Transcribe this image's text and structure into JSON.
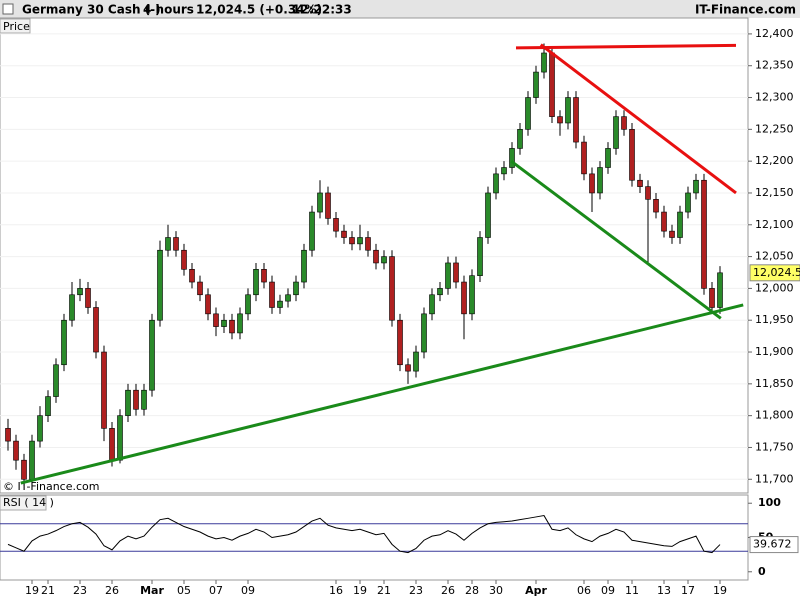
{
  "header": {
    "instrument": "Germany 30 Cash (-)",
    "period": "4 hours",
    "quote": "12,024.5 (+0.34%)",
    "time": "12:22:33",
    "brand": "IT-Finance.com"
  },
  "chart_data": [
    {
      "type": "candlestick",
      "panel_label": "Price",
      "watermark": "© IT-Finance.com",
      "up_color": "#2a8a2a",
      "down_color": "#b02020",
      "categories": [
        null,
        null,
        null,
        "19",
        null,
        "21",
        null,
        null,
        null,
        "23",
        null,
        null,
        null,
        "26",
        null,
        null,
        null,
        null,
        "Mar",
        null,
        null,
        null,
        "05",
        null,
        null,
        null,
        "07",
        null,
        null,
        null,
        "09",
        null,
        null,
        null,
        null,
        null,
        null,
        null,
        null,
        null,
        null,
        "16",
        null,
        null,
        "19",
        null,
        null,
        "21",
        null,
        null,
        null,
        "23",
        null,
        null,
        null,
        "26",
        null,
        null,
        "28",
        null,
        null,
        "30",
        null,
        null,
        null,
        null,
        "Apr",
        null,
        null,
        null,
        null,
        null,
        "06",
        null,
        null,
        "09",
        null,
        null,
        "11",
        null,
        null,
        null,
        "13",
        null,
        null,
        "17",
        null,
        null,
        null,
        "19"
      ],
      "open": [
        11780,
        11760,
        11730,
        11700,
        11760,
        11800,
        11830,
        11880,
        11950,
        11990,
        12000,
        11970,
        11900,
        11780,
        11730,
        11800,
        11840,
        11810,
        11840,
        11950,
        12060,
        12080,
        12060,
        12030,
        12010,
        11990,
        11960,
        11940,
        11950,
        11930,
        11960,
        11990,
        12030,
        12010,
        11970,
        11980,
        11990,
        12010,
        12060,
        12120,
        12150,
        12110,
        12090,
        12080,
        12070,
        12080,
        12060,
        12040,
        12050,
        11950,
        11880,
        11870,
        11900,
        11960,
        11990,
        12000,
        12040,
        12010,
        11960,
        12020,
        12080,
        12150,
        12180,
        12190,
        12220,
        12250,
        12300,
        12340,
        12370,
        12270,
        12260,
        12300,
        12230,
        12180,
        12150,
        12190,
        12220,
        12270,
        12250,
        12170,
        12160,
        12140,
        12120,
        12090,
        12080,
        12120,
        12150,
        12170,
        12000,
        11970
      ],
      "high": [
        11795,
        11770,
        11740,
        11770,
        11815,
        11840,
        11890,
        11960,
        12010,
        12015,
        12010,
        11980,
        11910,
        11790,
        11810,
        11850,
        11850,
        11850,
        11960,
        12075,
        12100,
        12090,
        12070,
        12040,
        12020,
        12000,
        11970,
        11960,
        11960,
        11970,
        12000,
        12040,
        12040,
        12020,
        11990,
        12000,
        12020,
        12070,
        12130,
        12170,
        12160,
        12120,
        12100,
        12090,
        12100,
        12090,
        12070,
        12060,
        12060,
        11960,
        11890,
        11910,
        11970,
        12000,
        12010,
        12050,
        12050,
        12020,
        12030,
        12090,
        12160,
        12190,
        12200,
        12230,
        12260,
        12310,
        12350,
        12385,
        12380,
        12280,
        12310,
        12310,
        12240,
        12190,
        12200,
        12230,
        12280,
        12280,
        12260,
        12180,
        12170,
        12150,
        12130,
        12100,
        12130,
        12160,
        12180,
        12180,
        12010,
        12035
      ],
      "low": [
        11745,
        11715,
        11690,
        11695,
        11750,
        11790,
        11820,
        11870,
        11940,
        11980,
        11960,
        11890,
        11760,
        11720,
        11725,
        11790,
        11800,
        11800,
        11830,
        11940,
        12050,
        12050,
        12020,
        12000,
        11980,
        11950,
        11925,
        11930,
        11920,
        11920,
        11950,
        11980,
        12000,
        11960,
        11960,
        11970,
        11980,
        12000,
        12050,
        12110,
        12100,
        12080,
        12070,
        12060,
        12060,
        12050,
        12030,
        12030,
        11940,
        11870,
        11850,
        11860,
        11890,
        11950,
        11980,
        11990,
        12000,
        11920,
        11950,
        12010,
        12070,
        12140,
        12170,
        12180,
        12210,
        12240,
        12290,
        12330,
        12260,
        12240,
        12250,
        12220,
        12170,
        12120,
        12140,
        12180,
        12210,
        12240,
        12160,
        12150,
        12040,
        12110,
        12080,
        12070,
        12070,
        12110,
        12140,
        11990,
        11960,
        11960
      ],
      "close": [
        11760,
        11730,
        11700,
        11760,
        11800,
        11830,
        11880,
        11950,
        11990,
        12000,
        11970,
        11900,
        11780,
        11730,
        11800,
        11840,
        11810,
        11840,
        11950,
        12060,
        12080,
        12060,
        12030,
        12010,
        11990,
        11960,
        11940,
        11950,
        11930,
        11960,
        11990,
        12030,
        12010,
        11970,
        11980,
        11990,
        12010,
        12060,
        12120,
        12150,
        12110,
        12090,
        12080,
        12070,
        12080,
        12060,
        12040,
        12050,
        11950,
        11880,
        11870,
        11900,
        11960,
        11990,
        12000,
        12040,
        12010,
        11960,
        12020,
        12080,
        12150,
        12180,
        12190,
        12220,
        12250,
        12300,
        12340,
        12370,
        12270,
        12260,
        12300,
        12230,
        12180,
        12150,
        12190,
        12220,
        12270,
        12250,
        12170,
        12160,
        12140,
        12120,
        12090,
        12080,
        12120,
        12150,
        12170,
        12000,
        11970,
        12024.5
      ],
      "last_price": {
        "value": 12024.5,
        "label": "12,024.5"
      },
      "ylim": [
        11680,
        12425
      ],
      "yticks": [
        {
          "value": 11700,
          "label": "11,700"
        },
        {
          "value": 11750,
          "label": "11,750"
        },
        {
          "value": 11800,
          "label": "11,800"
        },
        {
          "value": 11850,
          "label": "11,850"
        },
        {
          "value": 11900,
          "label": "11,900"
        },
        {
          "value": 11950,
          "label": "11,950"
        },
        {
          "value": 12000,
          "label": "12,000"
        },
        {
          "value": 12050,
          "label": "12,050"
        },
        {
          "value": 12100,
          "label": "12,100"
        },
        {
          "value": 12150,
          "label": "12,150"
        },
        {
          "value": 12200,
          "label": "12,200"
        },
        {
          "value": 12250,
          "label": "12,250"
        },
        {
          "value": 12300,
          "label": "12,300"
        },
        {
          "value": 12350,
          "label": "12,350"
        },
        {
          "value": 12400,
          "label": "12,400"
        }
      ],
      "trendlines": [
        {
          "color": "#e81010",
          "x": [
            63.5,
            91
          ],
          "y": [
            12378,
            12382
          ]
        },
        {
          "color": "#e81010",
          "x": [
            66.6,
            91
          ],
          "y": [
            12383,
            12150
          ]
        },
        {
          "color": "#1a8a1a",
          "x": [
            62.9,
            89.1
          ],
          "y": [
            12200,
            11953
          ]
        },
        {
          "color": "#1a8a1a",
          "x": [
            1.6,
            91.9
          ],
          "y": [
            11694,
            11974
          ]
        }
      ]
    },
    {
      "type": "line",
      "panel_label": "RSI ( 14 )",
      "color": "#000000",
      "values": [
        40,
        35,
        30,
        45,
        52,
        55,
        60,
        66,
        70,
        72,
        65,
        55,
        38,
        32,
        45,
        52,
        48,
        52,
        65,
        76,
        78,
        72,
        66,
        62,
        58,
        52,
        48,
        50,
        46,
        52,
        56,
        62,
        58,
        50,
        52,
        54,
        58,
        66,
        74,
        78,
        68,
        64,
        62,
        60,
        62,
        58,
        54,
        56,
        40,
        30,
        28,
        34,
        46,
        52,
        54,
        60,
        55,
        46,
        56,
        64,
        70,
        72,
        73,
        74,
        76,
        78,
        80,
        82,
        62,
        60,
        64,
        54,
        48,
        44,
        52,
        56,
        62,
        58,
        46,
        44,
        42,
        40,
        38,
        37,
        44,
        48,
        52,
        30,
        28,
        39.672
      ],
      "levels": [
        70,
        30
      ],
      "level_color": "#3a3a9a",
      "ylim": [
        -12,
        112
      ],
      "yticks": [
        0,
        50,
        100
      ]
    }
  ]
}
